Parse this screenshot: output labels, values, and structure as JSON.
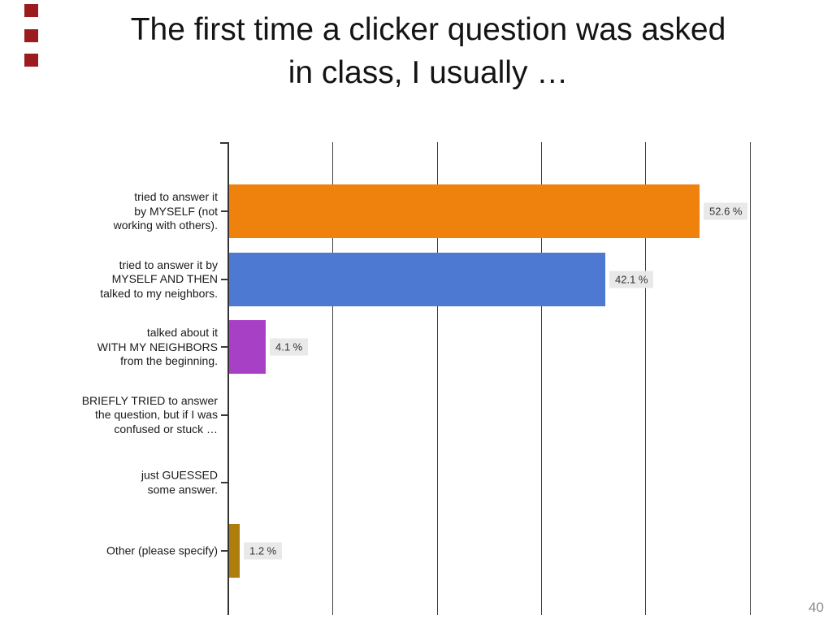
{
  "slide": {
    "title_line1": "The first time a clicker question was asked",
    "title_line2": "in class, I usually …",
    "page_number": "40"
  },
  "decorations": {
    "marker_count": 3,
    "marker_color": "#9B1B1E"
  },
  "chart_data": {
    "type": "bar",
    "orientation": "horizontal",
    "title": "The first time a clicker question was asked in class, I usually …",
    "xlabel": "",
    "ylabel": "",
    "grid": true,
    "gridline_count": 5,
    "axis_tick_labels_visible": false,
    "xlim_percent": [
      0,
      58.3
    ],
    "categories": [
      "tried to answer it\nby MYSELF (not\nworking with others).",
      "tried to answer it by\nMYSELF AND THEN\ntalked to my neighbors.",
      "talked about it\nWITH MY NEIGHBORS\nfrom the beginning.",
      "BRIEFLY TRIED to answer\nthe question, but if I was\nconfused or stuck …",
      "just GUESSED\nsome answer.",
      "Other (please specify)"
    ],
    "values": [
      52.6,
      42.1,
      4.1,
      null,
      null,
      1.2
    ],
    "value_labels": [
      "52.6 %",
      "42.1 %",
      "4.1 %",
      null,
      null,
      "1.2 %"
    ],
    "bar_colors": [
      "#EE820D",
      "#4D79D3",
      "#A840C6",
      null,
      null,
      "#AE7D0C"
    ],
    "value_label_bg": "#E9E9E9",
    "legend": null
  }
}
